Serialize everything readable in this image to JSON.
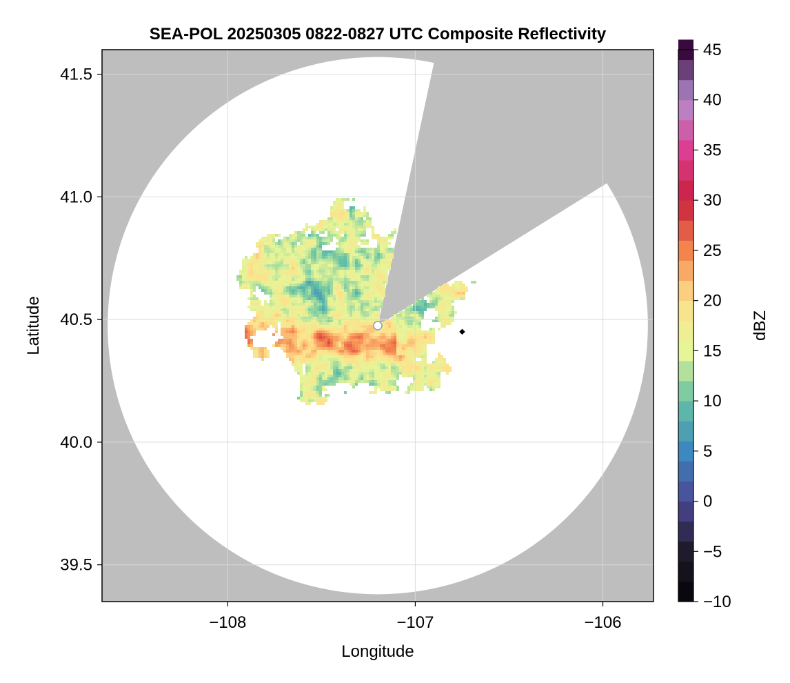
{
  "chart_data": {
    "type": "heatmap",
    "title": "SEA-POL 20250305 0822-0827 UTC Composite Reflectivity",
    "xlabel": "Longitude",
    "ylabel": "Latitude",
    "xlim": [
      -108.67,
      -105.73
    ],
    "ylim": [
      39.35,
      41.6
    ],
    "x_ticks": [
      {
        "value": -108,
        "label": "−108"
      },
      {
        "value": -107,
        "label": "−107"
      },
      {
        "value": -106,
        "label": "−106"
      }
    ],
    "y_ticks": [
      {
        "value": 39.5,
        "label": "39.5"
      },
      {
        "value": 40.0,
        "label": "40.0"
      },
      {
        "value": 40.5,
        "label": "40.5"
      },
      {
        "value": 41.0,
        "label": "41.0"
      },
      {
        "value": 41.5,
        "label": "41.5"
      }
    ],
    "grid": true,
    "radar": {
      "center": {
        "lon": -107.2,
        "lat": 40.475
      },
      "max_range_lon_deg": 1.44,
      "max_range_lat_deg": 1.095,
      "blocked_sector_bearings_deg": [
        12,
        58
      ]
    },
    "radar_marker": {
      "lon": -107.2,
      "lat": 40.475
    },
    "site_marker": {
      "lon": -106.75,
      "lat": 40.45
    },
    "colorbar": {
      "label": "dBZ",
      "range": [
        -10,
        45
      ],
      "step": 2,
      "ticks": [
        {
          "value": -10,
          "label": "−10"
        },
        {
          "value": -5,
          "label": "−5"
        },
        {
          "value": 0,
          "label": "0"
        },
        {
          "value": 5,
          "label": "5"
        },
        {
          "value": 10,
          "label": "10"
        },
        {
          "value": 15,
          "label": "15"
        },
        {
          "value": 20,
          "label": "20"
        },
        {
          "value": 25,
          "label": "25"
        },
        {
          "value": 30,
          "label": "30"
        },
        {
          "value": 35,
          "label": "35"
        },
        {
          "value": 40,
          "label": "40"
        },
        {
          "value": 45,
          "label": "45"
        }
      ]
    },
    "colors": {
      "no_coverage": "#bebebe",
      "coverage": "#ffffff",
      "grid": "#d9d9d9",
      "colormap_stops": [
        {
          "dbz": -10,
          "color": "#050307"
        },
        {
          "dbz": -5,
          "color": "#1f1a2c"
        },
        {
          "dbz": 0,
          "color": "#4b4795"
        },
        {
          "dbz": 5,
          "color": "#3d88be"
        },
        {
          "dbz": 10,
          "color": "#66c2a5"
        },
        {
          "dbz": 15,
          "color": "#e6f598"
        },
        {
          "dbz": 20,
          "color": "#fee08b"
        },
        {
          "dbz": 25,
          "color": "#f4844e"
        },
        {
          "dbz": 30,
          "color": "#c8203e"
        },
        {
          "dbz": 35,
          "color": "#dc3f92"
        },
        {
          "dbz": 40,
          "color": "#b48fcd"
        },
        {
          "dbz": 45,
          "color": "#3a0a3f"
        }
      ]
    },
    "echo_region": {
      "approx_extent_lon": [
        -108.04,
        -106.65
      ],
      "approx_extent_lat": [
        40.03,
        41.05
      ],
      "dominant_dbz_range": [
        8,
        22
      ],
      "peak_dbz": 29
    }
  }
}
